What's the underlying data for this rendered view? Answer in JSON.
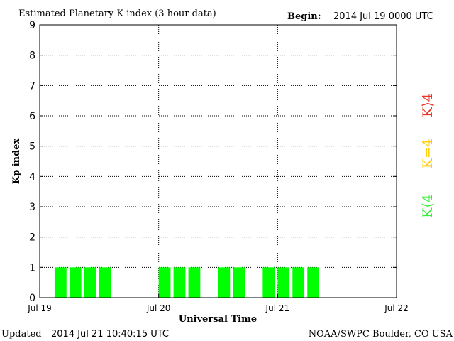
{
  "chart_data": {
    "type": "bar",
    "title": "Estimated Planetary K index (3 hour data)",
    "begin_label": "Begin:",
    "begin_value": "2014 Jul 19 0000 UTC",
    "xlabel": "Universal Time",
    "ylabel": "Kp index",
    "ylim": [
      0,
      9
    ],
    "yticks": [
      "0",
      "1",
      "2",
      "3",
      "4",
      "5",
      "6",
      "7",
      "8",
      "9"
    ],
    "xlim": [
      0,
      72
    ],
    "xticks": [
      {
        "hour": 0,
        "label": "Jul 19"
      },
      {
        "hour": 24,
        "label": "Jul 20"
      },
      {
        "hour": 48,
        "label": "Jul 21"
      },
      {
        "hour": 72,
        "label": "Jul 22"
      }
    ],
    "grid": true,
    "bar_width_hours": 2.4,
    "bars": [
      {
        "start_hour": 3,
        "value": 1,
        "color": "#00ff00"
      },
      {
        "start_hour": 6,
        "value": 1,
        "color": "#00ff00"
      },
      {
        "start_hour": 9,
        "value": 1,
        "color": "#00ff00"
      },
      {
        "start_hour": 12,
        "value": 1,
        "color": "#00ff00"
      },
      {
        "start_hour": 24,
        "value": 1,
        "color": "#00ff00"
      },
      {
        "start_hour": 27,
        "value": 1,
        "color": "#00ff00"
      },
      {
        "start_hour": 30,
        "value": 1,
        "color": "#00ff00"
      },
      {
        "start_hour": 36,
        "value": 1,
        "color": "#00ff00"
      },
      {
        "start_hour": 39,
        "value": 1,
        "color": "#00ff00"
      },
      {
        "start_hour": 45,
        "value": 1,
        "color": "#00ff00"
      },
      {
        "start_hour": 48,
        "value": 1,
        "color": "#00ff00"
      },
      {
        "start_hour": 51,
        "value": 1,
        "color": "#00ff00"
      },
      {
        "start_hour": 54,
        "value": 1,
        "color": "#00ff00"
      }
    ],
    "legend": [
      {
        "label": "K⟨4",
        "color": "#33ee33"
      },
      {
        "label": "K=4",
        "color": "#ffcc00"
      },
      {
        "label": "K⟩4",
        "color": "#ee3322"
      }
    ],
    "legend_placement": "right"
  },
  "footer": {
    "updated_label": "Updated",
    "updated_value": "2014 Jul 21 10:40:15 UTC",
    "source": "NOAA/SWPC Boulder, CO USA"
  }
}
